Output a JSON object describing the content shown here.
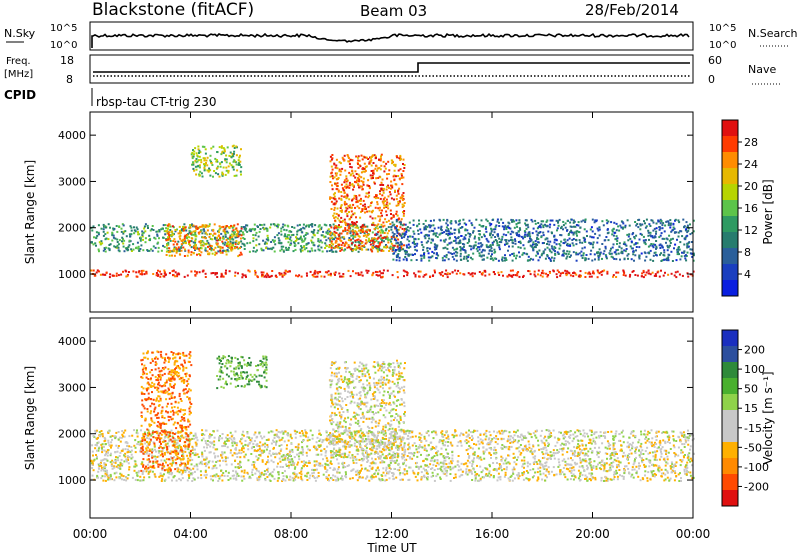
{
  "header": {
    "station": "Blackstone (fitACF)",
    "beam": "Beam 03",
    "date": "28/Feb/2014"
  },
  "noise_panel": {
    "left_label": "N.Sky",
    "right_label": "N.Search",
    "ticks": [
      "10^5",
      "10^0"
    ]
  },
  "freq_panel": {
    "left_label_1": "Freq.",
    "left_label_2": "[MHz]",
    "left_ticks": [
      "18",
      "8"
    ],
    "right_label": "Nave",
    "right_ticks": [
      "60",
      "0"
    ]
  },
  "cpid": {
    "label": "CPID",
    "value": "rbsp-tau CT-trig 230"
  },
  "power_panel": {
    "ylabel": "Slant Range [km]",
    "yticks": [
      "4000",
      "3000",
      "2000",
      "1000"
    ],
    "colorbar_label": "Power [dB]",
    "colorbar_ticks": [
      "28",
      "24",
      "20",
      "16",
      "12",
      "8",
      "4"
    ],
    "colorbar_colors": [
      "#e01010",
      "#ff3b00",
      "#ff8c00",
      "#e6b800",
      "#b6d400",
      "#5cc44a",
      "#2e9a62",
      "#277c6e",
      "#2a5f9a",
      "#1a3fbf",
      "#0a1fe0"
    ]
  },
  "velocity_panel": {
    "ylabel": "Slant Range [km]",
    "yticks": [
      "4000",
      "3000",
      "2000",
      "1000"
    ],
    "colorbar_label": "Velocity [m s⁻¹]",
    "colorbar_ticks": [
      "200",
      "100",
      "50",
      "15",
      "-15",
      "-50",
      "-100",
      "-200"
    ],
    "colorbar_colors": [
      "#1a2fbf",
      "#2c4f9e",
      "#2e8a3a",
      "#49b02e",
      "#8fd24a",
      "#c8c8c8",
      "#c8c8c8",
      "#ffb000",
      "#ff8a00",
      "#ff4a00",
      "#e01010"
    ]
  },
  "x_axis": {
    "ticks": [
      "00:00",
      "04:00",
      "08:00",
      "12:00",
      "16:00",
      "20:00",
      "00:00"
    ],
    "label": "Time UT"
  },
  "chart_data": {
    "type": "heatmap",
    "x_range_hours": [
      0,
      24
    ],
    "y_range_km": [
      180,
      4500
    ],
    "power_features": [
      {
        "t": [
          0,
          24
        ],
        "range_km": [
          950,
          1100
        ],
        "level_db": 28
      },
      {
        "t": [
          0,
          12
        ],
        "range_km": [
          1500,
          2100
        ],
        "level_db": 12
      },
      {
        "t": [
          3,
          6
        ],
        "range_km": [
          1400,
          2100
        ],
        "level_db": 22
      },
      {
        "t": [
          4,
          6
        ],
        "range_km": [
          3100,
          3800
        ],
        "level_db": 16
      },
      {
        "t": [
          9.5,
          12.5
        ],
        "range_km": [
          1500,
          3600
        ],
        "level_db": 24
      },
      {
        "t": [
          12,
          24
        ],
        "range_km": [
          1300,
          2200
        ],
        "level_db": 8
      }
    ],
    "velocity_features": [
      {
        "t": [
          0,
          24
        ],
        "range_km": [
          1000,
          2100
        ],
        "velocity_ms": 0
      },
      {
        "t": [
          2,
          4
        ],
        "range_km": [
          1200,
          3800
        ],
        "velocity_ms": -60
      },
      {
        "t": [
          5,
          7
        ],
        "range_km": [
          3000,
          3700
        ],
        "velocity_ms": 60
      },
      {
        "t": [
          9.5,
          12.5
        ],
        "range_km": [
          1500,
          3600
        ],
        "velocity_ms": 0
      }
    ]
  }
}
